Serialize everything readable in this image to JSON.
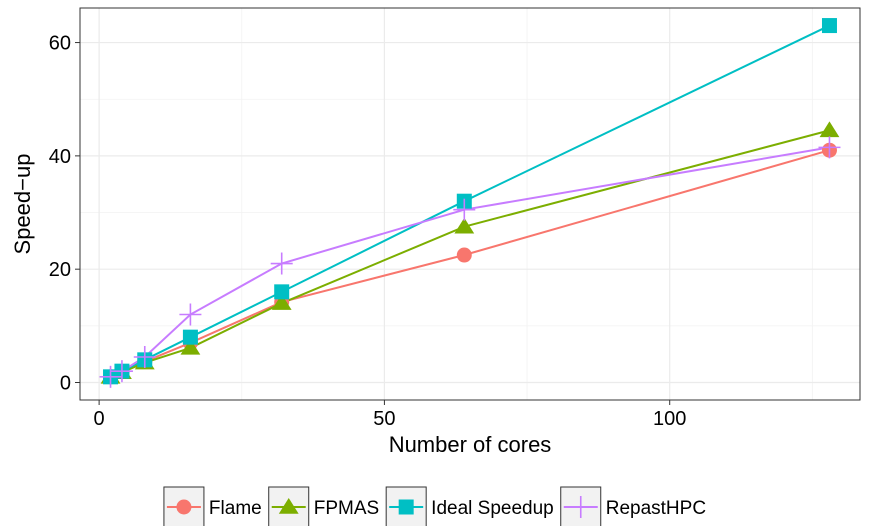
{
  "chart_data": {
    "type": "line",
    "title": "",
    "xlabel": "Number of cores",
    "ylabel": "Speed−up",
    "xlim": [
      -3.35,
      133.35
    ],
    "ylim": [
      -3.09,
      66.1
    ],
    "x_ticks": [
      0,
      50,
      100
    ],
    "x_tick_labels": [
      "0",
      "50",
      "100"
    ],
    "y_ticks": [
      0,
      20,
      40,
      60
    ],
    "y_tick_labels": [
      "0",
      "20",
      "40",
      "60"
    ],
    "x_minor_ticks": [
      25,
      75,
      125
    ],
    "y_minor_ticks": [
      10,
      30,
      50
    ],
    "grid": true,
    "legend_position": "bottom",
    "series": [
      {
        "name": "Flame",
        "color": "#F8766D",
        "marker": "circle",
        "points": [
          [
            2,
            1
          ],
          [
            4,
            1.9
          ],
          [
            8,
            3.7
          ],
          [
            16,
            7
          ],
          [
            32,
            14.2
          ],
          [
            64,
            22.5
          ],
          [
            128,
            41
          ]
        ]
      },
      {
        "name": "FPMAS",
        "color": "#7CAE00",
        "marker": "triangle",
        "points": [
          [
            2,
            1
          ],
          [
            4,
            1.8
          ],
          [
            8,
            3.5
          ],
          [
            16,
            6.1
          ],
          [
            32,
            14
          ],
          [
            64,
            27.5
          ],
          [
            128,
            44.5
          ]
        ]
      },
      {
        "name": "Ideal Speedup",
        "color": "#00BFC4",
        "marker": "square",
        "points": [
          [
            2,
            1
          ],
          [
            4,
            2
          ],
          [
            8,
            4
          ],
          [
            16,
            8
          ],
          [
            32,
            16
          ],
          [
            64,
            32
          ],
          [
            128,
            63
          ]
        ]
      },
      {
        "name": "RepastHPC",
        "color": "#C77CFF",
        "marker": "plus",
        "points": [
          [
            2,
            1
          ],
          [
            4,
            2
          ],
          [
            8,
            4.5
          ],
          [
            16,
            12
          ],
          [
            32,
            21
          ],
          [
            64,
            30.5
          ],
          [
            128,
            41.5
          ]
        ]
      }
    ]
  }
}
